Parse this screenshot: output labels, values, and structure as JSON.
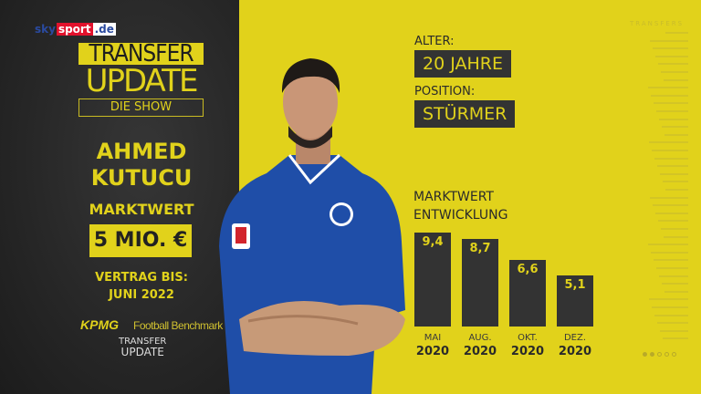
{
  "brand": {
    "sky": "sky",
    "sport": "sport",
    ".de": ".de"
  },
  "show": {
    "line1": "TRANSFER",
    "line2": "UPDATE",
    "line3": "DIE SHOW"
  },
  "player": {
    "first": "AHMED",
    "last": "KUTUCU",
    "marktwert_label": "MARKTWERT",
    "marktwert": "5 MIO. €",
    "vertrag_label": "VERTRAG BIS:",
    "vertrag": "JUNI 2022",
    "alter_label": "ALTER:",
    "alter": "20 JAHRE",
    "position_label": "POSITION:",
    "position": "STÜRMER"
  },
  "sponsor": {
    "kpmg": "KPMG",
    "benchmark": "Football Benchmark",
    "small_logo_1": "TRANSFER",
    "small_logo_2": "UPDATE"
  },
  "sidebar": {
    "title": "TRANSFERS",
    "page_dots": 5,
    "active_dots": 2
  },
  "colors": {
    "yellow": "#e1d21b",
    "dark": "#2a2a2a",
    "bar": "#333333"
  },
  "chart_data": {
    "type": "bar",
    "title": "MARKTWERT ENTWICKLUNG",
    "categories": [
      "MAI 2020",
      "AUG. 2020",
      "OKT. 2020",
      "DEZ. 2020"
    ],
    "months": [
      "MAI",
      "AUG.",
      "OKT.",
      "DEZ."
    ],
    "years": [
      "2020",
      "2020",
      "2020",
      "2020"
    ],
    "values": [
      9.4,
      8.7,
      6.6,
      5.1
    ],
    "value_labels": [
      "9,4",
      "8,7",
      "6,6",
      "5,1"
    ],
    "unit": "Mio. €",
    "grid": false
  }
}
